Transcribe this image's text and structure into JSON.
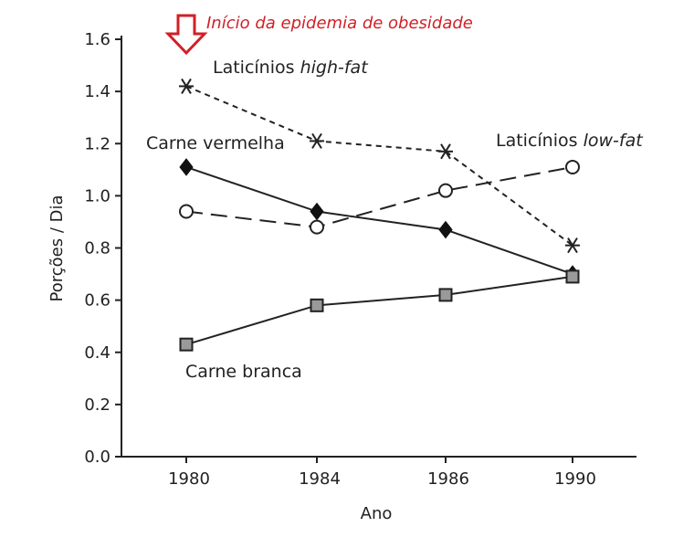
{
  "chart_data": {
    "type": "line",
    "categories": [
      "1980",
      "1984",
      "1986",
      "1990"
    ],
    "xlabel": "Ano",
    "ylabel": "Porções / Dia",
    "ylim": [
      0,
      1.6
    ],
    "yticks": [
      "0.0",
      "0.2",
      "0.4",
      "0.6",
      "0.8",
      "1.0",
      "1.2",
      "1.4",
      "1.6"
    ],
    "grid": false,
    "annotation": "Início da epidemia de obesidade",
    "colors": {
      "annotation": "#d21f26",
      "line": "#222222",
      "square_fill": "#9a9a9a"
    },
    "series": [
      {
        "name": "Laticínios high-fat",
        "label_parts": [
          {
            "text": "Laticínios ",
            "italic": false
          },
          {
            "text": "high-fat",
            "italic": true
          }
        ],
        "values": [
          1.42,
          1.21,
          1.17,
          0.81
        ],
        "marker": "asterisk",
        "line_style": "dotted"
      },
      {
        "name": "Carne vermelha",
        "label_parts": [
          {
            "text": "Carne vermelha",
            "italic": false
          }
        ],
        "values": [
          1.11,
          0.94,
          0.87,
          0.7
        ],
        "marker": "diamond",
        "line_style": "solid"
      },
      {
        "name": "Laticínios low-fat",
        "label_parts": [
          {
            "text": "Laticínios ",
            "italic": false
          },
          {
            "text": "low-fat",
            "italic": true
          }
        ],
        "values": [
          0.94,
          0.88,
          1.02,
          1.11
        ],
        "marker": "circle-open",
        "line_style": "dashed"
      },
      {
        "name": "Carne branca",
        "label_parts": [
          {
            "text": "Carne branca",
            "italic": false
          }
        ],
        "values": [
          0.43,
          0.58,
          0.62,
          0.69
        ],
        "marker": "square",
        "line_style": "solid"
      }
    ]
  }
}
